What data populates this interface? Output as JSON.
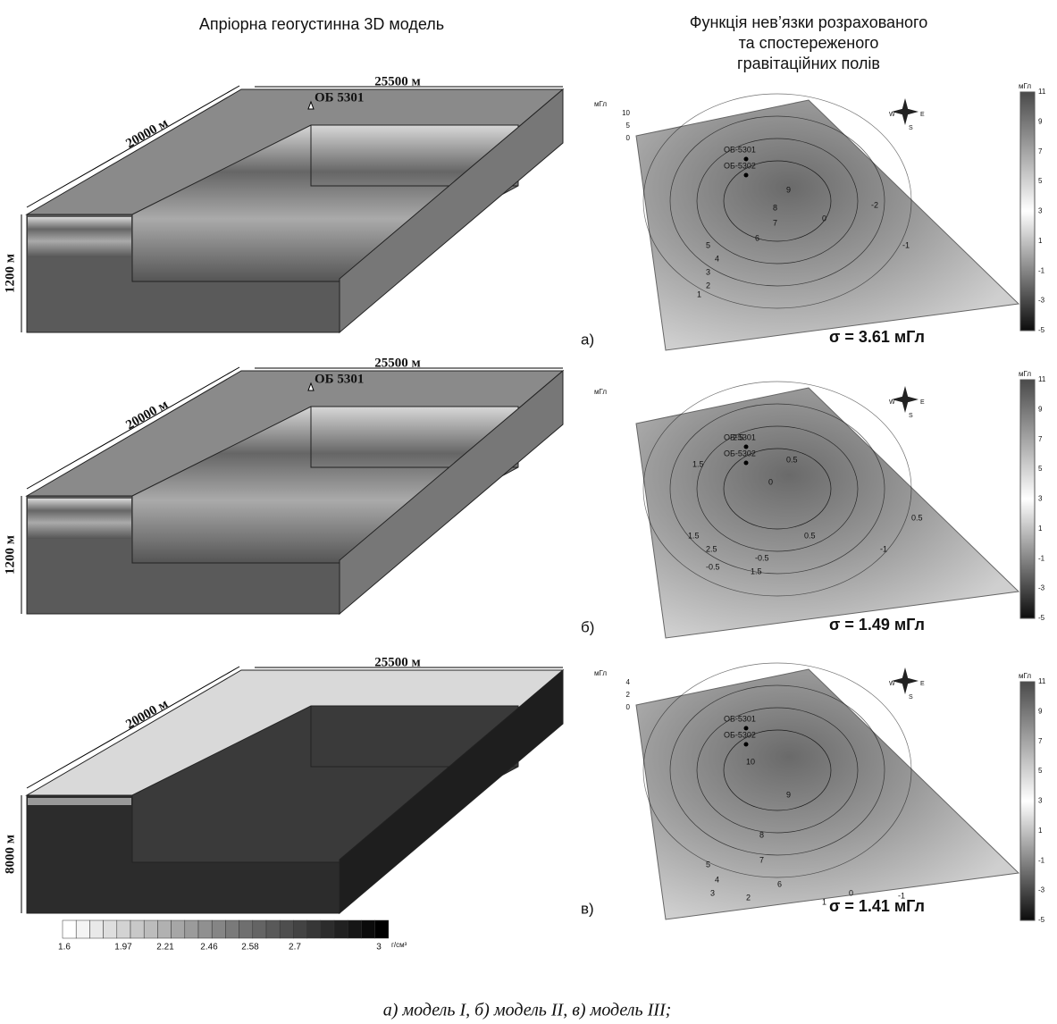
{
  "left_title": "Апріорна геогустинна 3D модель",
  "right_title": [
    "Функція нев’язки розрахованого",
    "та спостереженого",
    "гравітаційних полів"
  ],
  "panels": [
    {
      "letter": "а)",
      "block": {
        "length": "25500 м",
        "width": "20000 м",
        "depth": "1200 м",
        "well": "ОБ 5301"
      },
      "map": {
        "unit": "мГл",
        "axis_ticks": [
          "10",
          "5",
          "0"
        ],
        "wells": [
          "ОБ-5301",
          "ОБ-5302"
        ],
        "contours": [
          "9",
          "8",
          "7",
          "6",
          "5",
          "4",
          "3",
          "2",
          "1",
          "0",
          "-1",
          "-2"
        ],
        "compass": [
          "W",
          "E",
          "S"
        ],
        "sigma": "σ = 3.61 мГл",
        "colorbar_unit": "мГл",
        "colorbar_ticks": [
          11,
          9,
          7,
          5,
          3,
          1,
          -1,
          -3,
          -5
        ]
      }
    },
    {
      "letter": "б)",
      "block": {
        "length": "25500 м",
        "width": "20000 м",
        "depth": "1200 м",
        "well": "ОБ 5301"
      },
      "map": {
        "unit": "мГл",
        "axis_ticks": [],
        "wells": [
          "ОБ-5301",
          "ОБ-5302"
        ],
        "contours": [
          "2.5",
          "1.5",
          "0.5",
          "0",
          "1.5",
          "0.5",
          "-0.5",
          "2.5",
          "1.5",
          "-1",
          "0.5",
          "-0.5"
        ],
        "compass": [
          "W",
          "E",
          "S"
        ],
        "sigma": "σ = 1.49 мГл",
        "colorbar_unit": "мГл",
        "colorbar_ticks": [
          11,
          9,
          7,
          5,
          3,
          1,
          -1,
          -3,
          -5
        ]
      }
    },
    {
      "letter": "в)",
      "block": {
        "length": "25500 м",
        "width": "20000 м",
        "depth": "8000 м",
        "well": null
      },
      "map": {
        "unit": "мГл",
        "axis_ticks": [
          "4",
          "2",
          "0"
        ],
        "wells": [
          "ОБ-5301",
          "ОБ-5302"
        ],
        "contours": [
          "10",
          "9",
          "8",
          "7",
          "6",
          "5",
          "4",
          "3",
          "2",
          "1",
          "0",
          "-1"
        ],
        "compass": [
          "W",
          "E",
          "S"
        ],
        "sigma": "σ = 1.41 мГл",
        "colorbar_unit": "мГл",
        "colorbar_ticks": [
          11,
          9,
          7,
          5,
          3,
          1,
          -1,
          -3,
          -5
        ]
      }
    }
  ],
  "density_scale": {
    "ticks": [
      "1.6",
      "1.97",
      "2.21",
      "2.46",
      "2.58",
      "2.7",
      "3"
    ],
    "unit": "г/см³"
  },
  "caption": "а) модель I, б) модель II, в) модель III;"
}
